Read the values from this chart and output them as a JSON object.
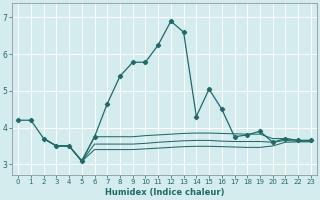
{
  "xlabel": "Humidex (Indice chaleur)",
  "background_color": "#d4ecee",
  "grid_color": "#ffffff",
  "line_color": "#1e6b68",
  "xlim": [
    -0.5,
    23.5
  ],
  "ylim": [
    2.7,
    7.4
  ],
  "yticks": [
    3,
    4,
    5,
    6,
    7
  ],
  "xticks": [
    0,
    1,
    2,
    3,
    4,
    5,
    6,
    7,
    8,
    9,
    10,
    11,
    12,
    13,
    14,
    15,
    16,
    17,
    18,
    19,
    20,
    21,
    22,
    23
  ],
  "line1_x": [
    0,
    1,
    2,
    3,
    4,
    5,
    6,
    7,
    8,
    9,
    10,
    11,
    12,
    13,
    14,
    15,
    16,
    17,
    18,
    19,
    20,
    21,
    22,
    23
  ],
  "line1_y": [
    4.2,
    4.2,
    3.7,
    3.5,
    3.5,
    3.1,
    3.75,
    4.65,
    5.4,
    5.78,
    5.78,
    6.25,
    6.9,
    6.6,
    4.3,
    5.05,
    4.5,
    3.75,
    3.8,
    3.9,
    3.6,
    3.7,
    3.65,
    3.65
  ],
  "line2_x": [
    2,
    3,
    4,
    5,
    6,
    7,
    8,
    9,
    10,
    11,
    12,
    13,
    14,
    15,
    16,
    17,
    18,
    19,
    20,
    21,
    22,
    23
  ],
  "line2_y": [
    3.7,
    3.5,
    3.5,
    3.08,
    3.75,
    3.75,
    3.75,
    3.75,
    3.78,
    3.8,
    3.82,
    3.84,
    3.85,
    3.85,
    3.84,
    3.83,
    3.82,
    3.82,
    3.7,
    3.7,
    3.65,
    3.65
  ],
  "line3_x": [
    2,
    3,
    4,
    5,
    6,
    7,
    8,
    9,
    10,
    11,
    12,
    13,
    14,
    15,
    16,
    17,
    18,
    19,
    20,
    21,
    22,
    23
  ],
  "line3_y": [
    3.7,
    3.5,
    3.5,
    3.08,
    3.55,
    3.55,
    3.55,
    3.55,
    3.57,
    3.6,
    3.62,
    3.64,
    3.65,
    3.65,
    3.63,
    3.62,
    3.62,
    3.62,
    3.6,
    3.65,
    3.63,
    3.63
  ],
  "line4_x": [
    2,
    3,
    4,
    5,
    6,
    7,
    8,
    9,
    10,
    11,
    12,
    13,
    14,
    15,
    16,
    17,
    18,
    19,
    20,
    21,
    22,
    23
  ],
  "line4_y": [
    3.7,
    3.5,
    3.5,
    3.08,
    3.4,
    3.4,
    3.4,
    3.4,
    3.42,
    3.44,
    3.46,
    3.48,
    3.49,
    3.49,
    3.48,
    3.47,
    3.46,
    3.46,
    3.5,
    3.6,
    3.61,
    3.61
  ]
}
